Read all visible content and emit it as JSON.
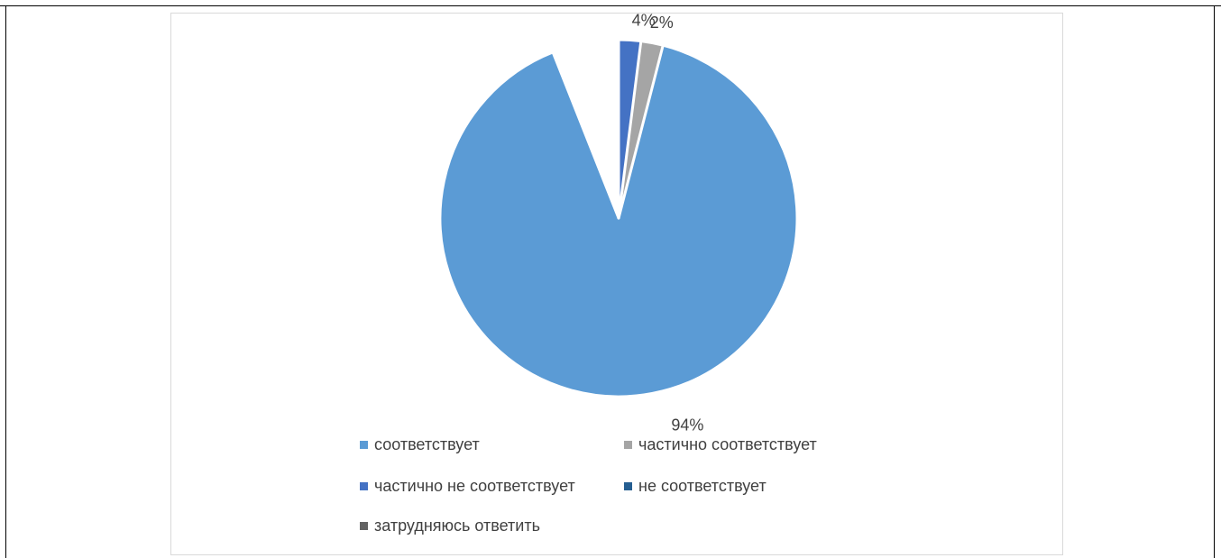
{
  "chart_data": {
    "type": "pie",
    "title": "",
    "categories": [
      "соответствует",
      "частично соответствует",
      "частично не соответствует",
      "не соответствует",
      "затрудняюсь ответить"
    ],
    "values": [
      94,
      4,
      2,
      0,
      0
    ],
    "data_labels": [
      "94%",
      "4%",
      "2%",
      "",
      ""
    ],
    "colors": [
      "#5b9bd5",
      "#a5a5a5",
      "#4472c4",
      "#255e91",
      "#636363"
    ],
    "legend_position": "bottom"
  }
}
